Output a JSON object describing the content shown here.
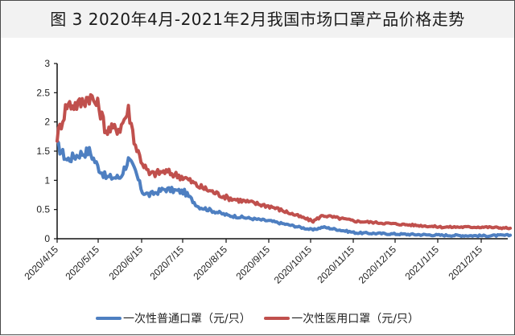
{
  "title": "图 3  2020年4月-2021年2月我国市场口罩产品价格走势",
  "legend": [
    {
      "label": "一次性普通口罩（元/只）",
      "color": "#4e7fc1"
    },
    {
      "label": "一次性医用口罩（元/只）",
      "color": "#c0504d"
    }
  ],
  "axes": {
    "y_ticks": [
      "0",
      "0.5",
      "1",
      "1.5",
      "2",
      "2.5",
      "3"
    ],
    "x_ticks": [
      "2020/4/15",
      "2020/5/15",
      "2020/6/15",
      "2020/7/15",
      "2020/8/15",
      "2020/9/15",
      "2020/10/15",
      "2020/11/15",
      "2020/12/15",
      "2021/1/15",
      "2021/2/15"
    ]
  },
  "chart_data": {
    "type": "line",
    "title": "图 3  2020年4月-2021年2月我国市场口罩产品价格走势",
    "xlabel": "",
    "ylabel": "",
    "ylim": [
      0,
      3
    ],
    "grid": false,
    "legend_position": "bottom",
    "x": [
      "2020/4/15",
      "2020/4/22",
      "2020/5/1",
      "2020/5/8",
      "2020/5/15",
      "2020/5/20",
      "2020/5/30",
      "2020/6/5",
      "2020/6/10",
      "2020/6/15",
      "2020/6/20",
      "2020/7/1",
      "2020/7/15",
      "2020/7/25",
      "2020/8/15",
      "2020/9/15",
      "2020/10/15",
      "2020/10/22",
      "2020/11/15",
      "2020/12/15",
      "2021/1/15",
      "2021/2/15",
      "2021/3/5"
    ],
    "series": [
      {
        "name": "一次性普通口罩（元/只）",
        "color": "#4e7fc1",
        "values": [
          1.6,
          1.35,
          1.45,
          1.5,
          1.2,
          1.05,
          1.05,
          1.35,
          1.15,
          0.8,
          0.75,
          0.85,
          0.8,
          0.55,
          0.4,
          0.3,
          0.15,
          0.2,
          0.1,
          0.08,
          0.06,
          0.05,
          0.06
        ]
      },
      {
        "name": "一次性医用口罩（元/只）",
        "color": "#c0504d",
        "values": [
          1.75,
          2.3,
          2.3,
          2.45,
          2.25,
          1.85,
          1.9,
          2.2,
          1.6,
          1.3,
          1.1,
          1.15,
          1.05,
          0.9,
          0.7,
          0.55,
          0.3,
          0.4,
          0.3,
          0.25,
          0.2,
          0.2,
          0.18
        ]
      }
    ],
    "x_day_offsets": [
      0,
      7,
      16,
      23,
      30,
      35,
      45,
      51,
      56,
      61,
      66,
      77,
      91,
      101,
      122,
      153,
      183,
      190,
      214,
      244,
      275,
      306,
      324
    ]
  }
}
